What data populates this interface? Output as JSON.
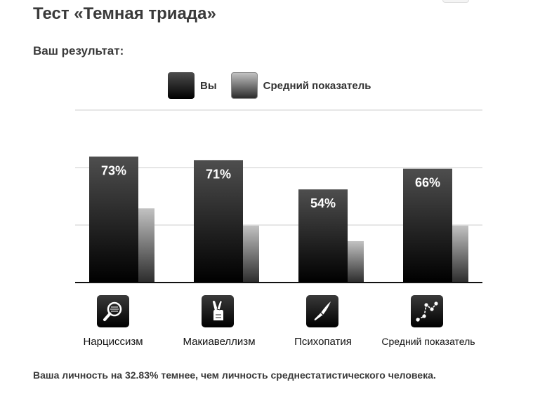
{
  "page": {
    "title": "Тест «Темная триада»",
    "result_heading": "Ваш результат:",
    "footer": "Ваша личность на 32.83% темнее, чем личность среднестатистического человека."
  },
  "legend": {
    "you": "Вы",
    "average": "Средний показатель"
  },
  "colors": {
    "you_top": "#4e4e4e",
    "you_bottom": "#000000",
    "avg_top": "#c2c2c2",
    "avg_bottom": "#2c2c2c",
    "grid": "#cccccc",
    "axis": "#111111"
  },
  "chart_data": {
    "type": "bar",
    "title": "",
    "xlabel": "",
    "ylabel": "",
    "categories": [
      "Нарциссизм",
      "Макиавеллизм",
      "Психопатия",
      "Средний показатель"
    ],
    "icons": [
      "magnifier-icon",
      "crossed-fingers-icon",
      "knife-icon",
      "line-graph-icon"
    ],
    "series": [
      {
        "name": "Вы",
        "values": [
          73,
          71,
          54,
          66
        ],
        "labels": [
          "73%",
          "71%",
          "54%",
          "66%"
        ]
      },
      {
        "name": "Средний показатель",
        "values": [
          43,
          33,
          24,
          33
        ]
      }
    ],
    "ylim": [
      0,
      100
    ],
    "grid": true,
    "legend_position": "top"
  }
}
